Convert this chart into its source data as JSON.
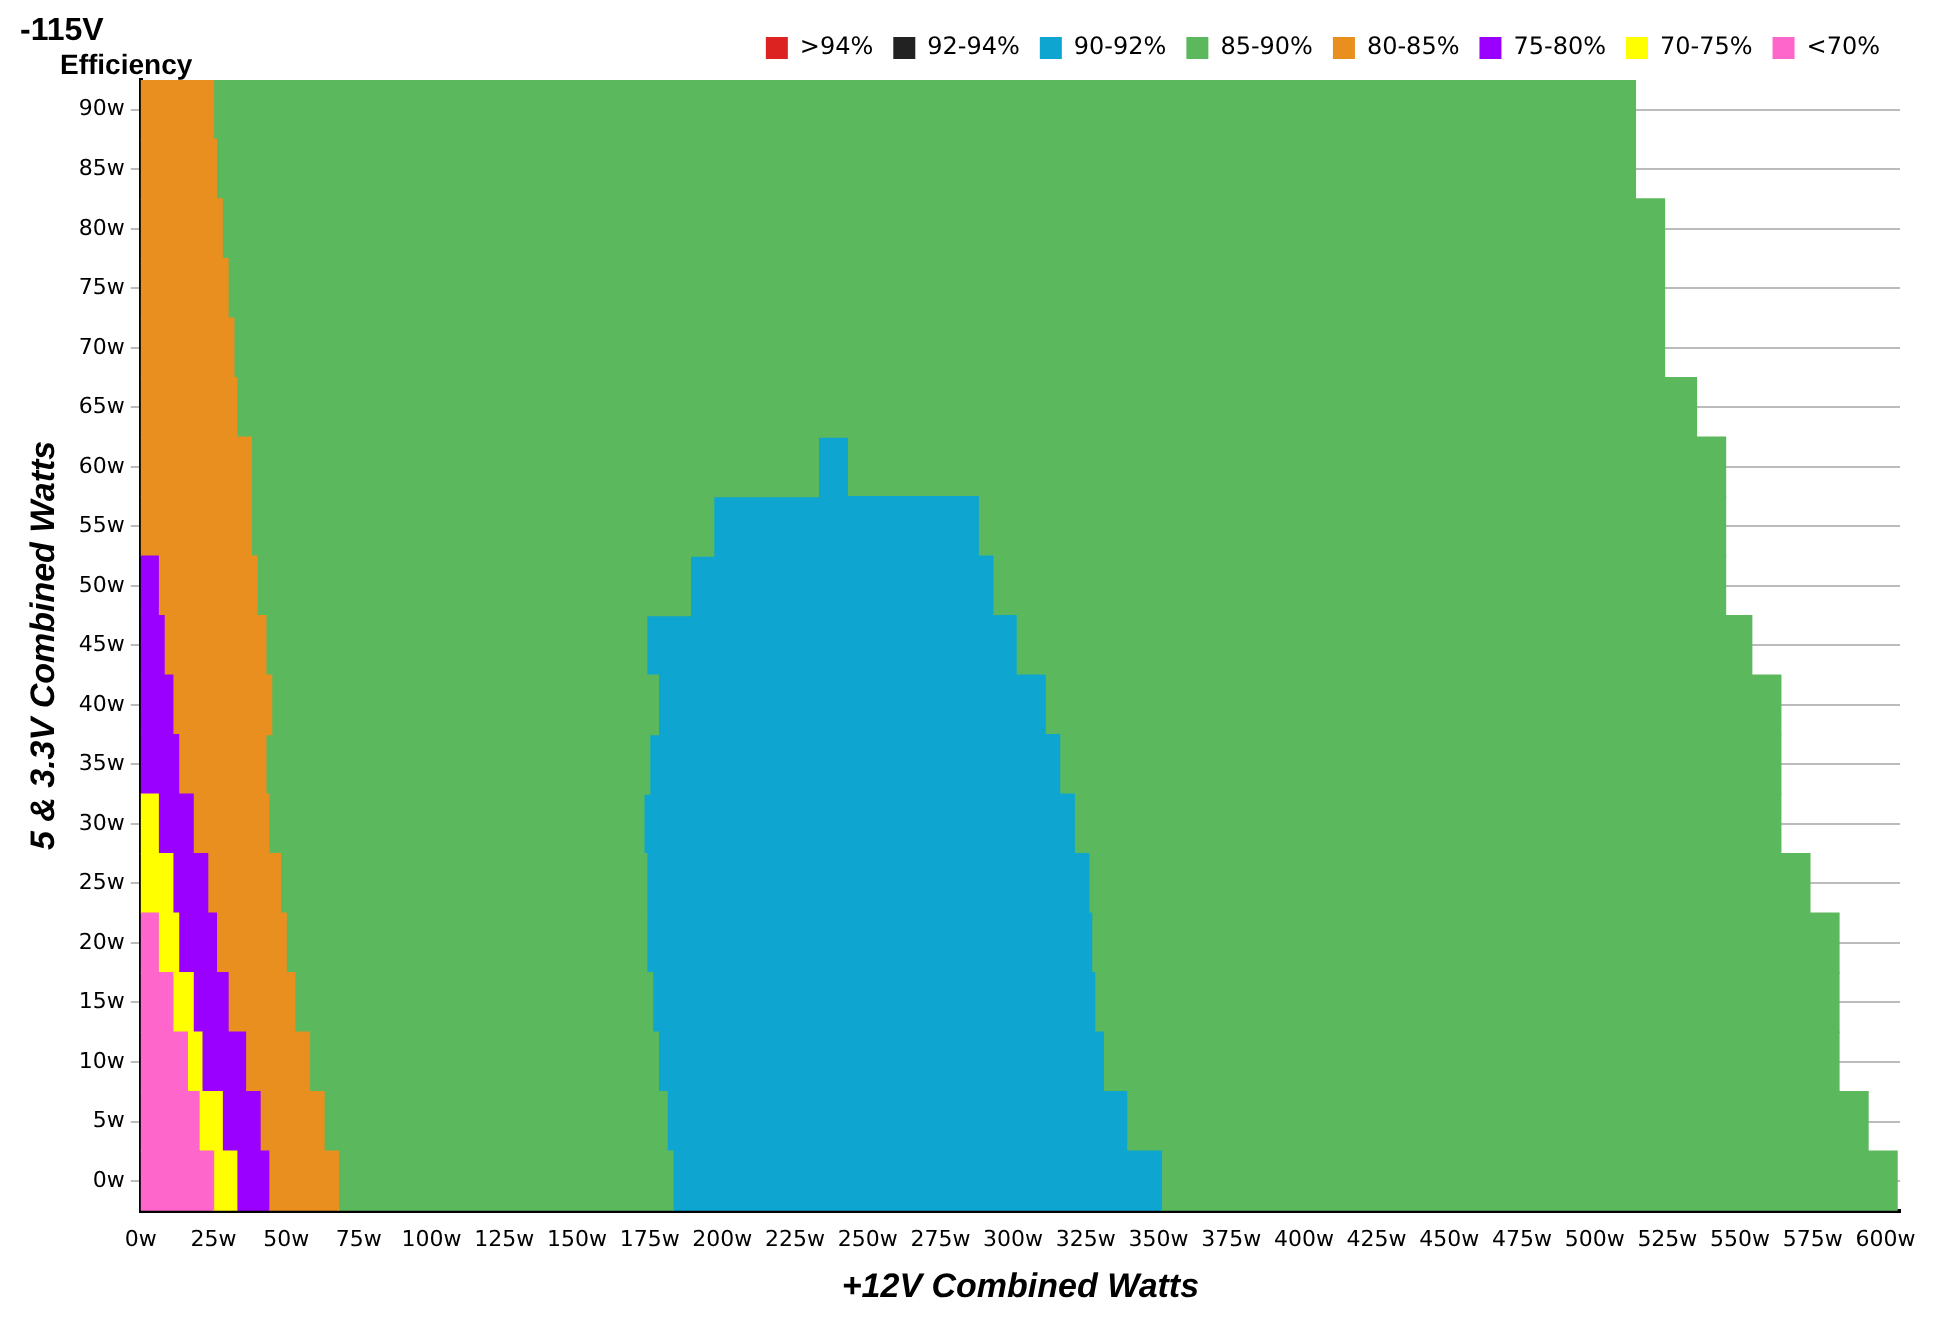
{
  "chart_data": {
    "type": "bar",
    "orientation": "horizontal",
    "stacked": true,
    "title": "-115V",
    "subtitle": "Efficiency",
    "xlabel": "+12V Combined Watts",
    "ylabel": "5 & 3.3V Combined Watts",
    "categories": [
      "90w",
      "85w",
      "80w",
      "75w",
      "70w",
      "65w",
      "60w",
      "55w",
      "50w",
      "45w",
      "40w",
      "35w",
      "30w",
      "25w",
      "20w",
      "15w",
      "10w",
      "5w",
      "0w"
    ],
    "xlim": [
      0,
      605
    ],
    "xticks": [
      {
        "value": 0,
        "label": "0w"
      },
      {
        "value": 25,
        "label": "25w"
      },
      {
        "value": 50,
        "label": "50w"
      },
      {
        "value": 75,
        "label": "75w"
      },
      {
        "value": 100,
        "label": "100w"
      },
      {
        "value": 125,
        "label": "125w"
      },
      {
        "value": 150,
        "label": "150w"
      },
      {
        "value": 175,
        "label": "175w"
      },
      {
        "value": 200,
        "label": "200w"
      },
      {
        "value": 225,
        "label": "225w"
      },
      {
        "value": 250,
        "label": "250w"
      },
      {
        "value": 275,
        "label": "275w"
      },
      {
        "value": 300,
        "label": "300w"
      },
      {
        "value": 325,
        "label": "325w"
      },
      {
        "value": 350,
        "label": "350w"
      },
      {
        "value": 375,
        "label": "375w"
      },
      {
        "value": 400,
        "label": "400w"
      },
      {
        "value": 425,
        "label": "425w"
      },
      {
        "value": 450,
        "label": "450w"
      },
      {
        "value": 475,
        "label": "475w"
      },
      {
        "value": 500,
        "label": "500w"
      },
      {
        "value": 525,
        "label": "525w"
      },
      {
        "value": 550,
        "label": "550w"
      },
      {
        "value": 575,
        "label": "575w"
      },
      {
        "value": 600,
        "label": "600w"
      }
    ],
    "grid": "y",
    "legend": "top right",
    "series": [
      {
        "name": ">94%",
        "color": "#dd2222",
        "values": [
          null,
          null,
          null,
          null,
          null,
          null,
          null,
          null,
          null,
          null,
          null,
          null,
          null,
          null,
          null,
          null,
          null,
          null,
          null
        ]
      },
      {
        "name": "92-94%",
        "color": "#222222",
        "values": [
          null,
          null,
          null,
          null,
          null,
          null,
          null,
          null,
          null,
          null,
          null,
          null,
          null,
          null,
          null,
          null,
          null,
          null,
          null
        ]
      },
      {
        "name": "<70%",
        "color": "#ff66cc",
        "values": [
          null,
          null,
          null,
          null,
          null,
          null,
          null,
          null,
          null,
          null,
          null,
          null,
          null,
          null,
          6,
          11,
          16,
          20,
          25
        ]
      },
      {
        "name": "70-75%",
        "color": "#ffff00",
        "values": [
          null,
          null,
          null,
          null,
          null,
          null,
          null,
          null,
          null,
          null,
          null,
          null,
          6,
          11,
          7,
          7,
          5,
          8,
          8
        ]
      },
      {
        "name": "75-80%",
        "color": "#9900ff",
        "values": [
          null,
          null,
          null,
          null,
          null,
          null,
          null,
          null,
          6,
          8,
          11,
          13,
          12,
          12,
          13,
          12,
          15,
          13,
          11
        ]
      },
      {
        "name": "80-85%",
        "color": "#e98f20",
        "values": [
          25,
          26,
          28,
          30,
          32,
          33,
          38,
          38,
          34,
          35,
          34,
          30,
          26,
          25,
          24,
          23,
          22,
          22,
          24
        ]
      },
      {
        "name": "85-90%",
        "color": "#5cb85c",
        "values": [
          489,
          488,
          496,
          494,
          492,
          502,
          195,
          159,
          149,
          131,
          133,
          132,
          129,
          126,
          124,
          123,
          120,
          118,
          115
        ]
      },
      {
        "name": "90-92%",
        "color": "#0ea5d0",
        "values": [
          null,
          null,
          null,
          null,
          null,
          null,
          10,
          91,
          104,
          127,
          133,
          141,
          148,
          152,
          153,
          152,
          153,
          158,
          168
        ]
      },
      {
        "color": "#5cb85c",
        "values": [
          null,
          null,
          null,
          null,
          null,
          null,
          302,
          257,
          252,
          253,
          253,
          248,
          243,
          248,
          257,
          256,
          253,
          255,
          253
        ]
      }
    ]
  }
}
